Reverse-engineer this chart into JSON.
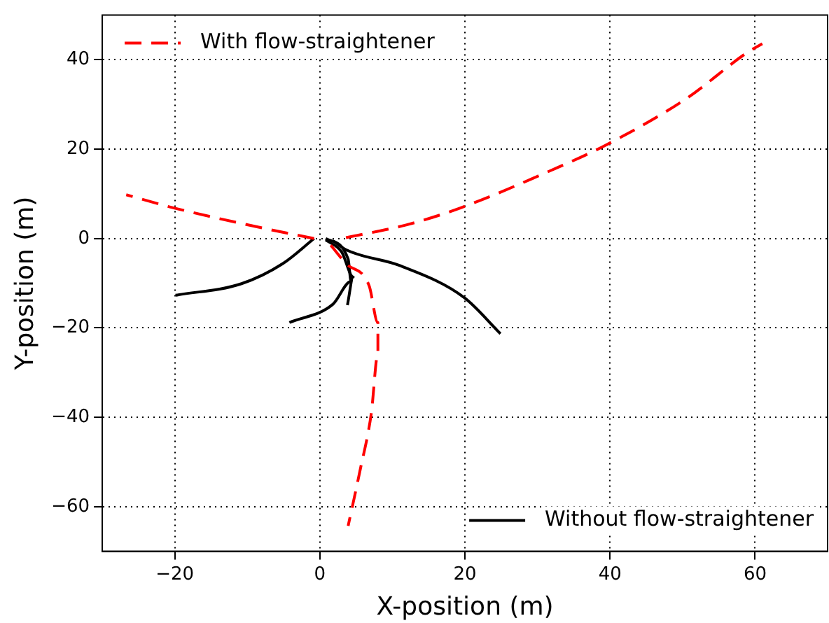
{
  "chart_data": {
    "type": "line",
    "xlabel": "X-position (m)",
    "ylabel": "Y-position (m)",
    "xlim": [
      -30,
      70
    ],
    "ylim": [
      -70,
      50
    ],
    "xticks": [
      -20,
      0,
      20,
      40,
      60
    ],
    "yticks": [
      -60,
      -40,
      -20,
      0,
      20,
      40
    ],
    "grid": true,
    "legend": [
      "top left",
      "bottom right"
    ],
    "marker": "none",
    "series": [
      {
        "name": "With flow-straightener",
        "color": "#ff0000",
        "line_style": "dashed",
        "x": [
          -0.8,
          -8.9,
          -20.5,
          -26.7
        ],
        "values": [
          0,
          2.7,
          7,
          9.8
        ]
      },
      {
        "color": "#ff0000",
        "line_style": "dashed",
        "x": [
          3.6,
          11.8,
          19.3,
          31.8,
          39.3,
          50.6,
          58.8,
          61
        ],
        "values": [
          0.2,
          3,
          6.8,
          15.2,
          20.8,
          31.4,
          41.5,
          43.6
        ]
      },
      {
        "color": "#ff0000",
        "line_style": "dashed",
        "x": [
          1.5,
          3.6,
          6.8,
          8,
          8,
          7.1,
          5.5,
          3.9
        ],
        "values": [
          -1.5,
          -5.6,
          -10.6,
          -18.8,
          -25.8,
          -39,
          -52.2,
          -64.3
        ]
      },
      {
        "name": "Without flow-straightener",
        "color": "#000000",
        "line_style": "solid",
        "x": [
          -19.9,
          -10.8,
          -5.1,
          -0.8
        ],
        "values": [
          -12.7,
          -10.1,
          -5.6,
          0
        ]
      },
      {
        "color": "#000000",
        "line_style": "solid",
        "x": [
          -4.2,
          1.8,
          4.3,
          3.9,
          0.8
        ],
        "values": [
          -18.8,
          -14.7,
          -9.6,
          -4.6,
          0
        ]
      },
      {
        "color": "#000000",
        "line_style": "solid",
        "x": [
          3.8,
          4.6,
          3,
          0.8
        ],
        "values": [
          -14.9,
          -8.6,
          -3,
          -0.3
        ]
      },
      {
        "color": "#000000",
        "line_style": "solid",
        "x": [
          1.8,
          3.6,
          11.1,
          19.9,
          24.9
        ],
        "values": [
          -0.5,
          -2.5,
          -6.1,
          -13.2,
          -21.3
        ]
      }
    ]
  }
}
